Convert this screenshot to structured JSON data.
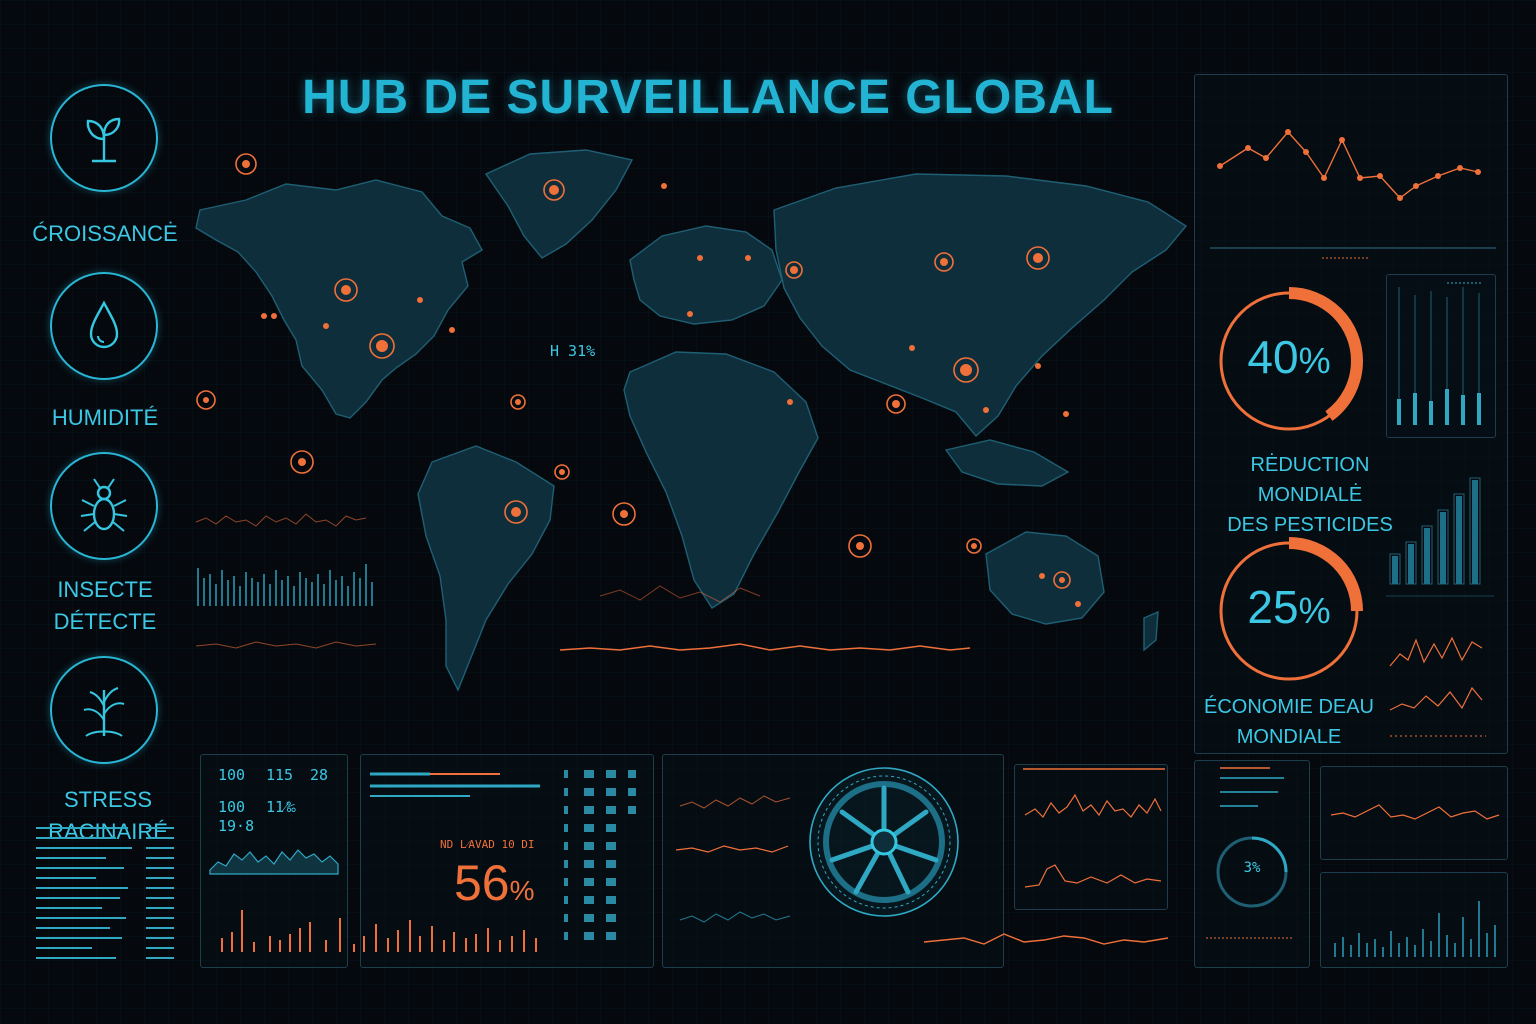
{
  "header": {
    "title": "HUB DE SURVEILLANCE GLOBAL"
  },
  "categories": [
    {
      "icon": "sprout-icon",
      "label": "ĆROISSANCĖ"
    },
    {
      "icon": "water-drop-icon",
      "label": "HUMIDITÉ"
    },
    {
      "icon": "insect-icon",
      "label_line1": "INSECTE",
      "label_line2": "DÉTECTE"
    },
    {
      "icon": "root-stress-icon",
      "label": "STRESS RACINAIRÉ"
    }
  ],
  "map": {
    "overlay_label": "H  31%"
  },
  "kpis": [
    {
      "value": "40",
      "unit": "%",
      "fraction": 0.4,
      "label_line1": "RĖDUCTION MONDIALĖ",
      "label_line2": "DES PESTICIDES"
    },
    {
      "value": "25",
      "unit": "%",
      "fraction": 0.25,
      "label_line1": "ÉCONOMIE DEAU",
      "label_line2": "MONDIALE"
    }
  ],
  "stats_panel": {
    "row1": [
      "100",
      "115",
      "28"
    ],
    "row2": [
      "100",
      "11⁄‰",
      "19·8"
    ]
  },
  "progress_panel": {
    "caption": "ND  L⁄AVAD  10  DI",
    "value": "56",
    "unit": "%"
  },
  "small_gauge": {
    "value": "3%"
  },
  "colors": {
    "cyan": "#35c6e0",
    "orange": "#f0703a",
    "background": "#05090e"
  }
}
